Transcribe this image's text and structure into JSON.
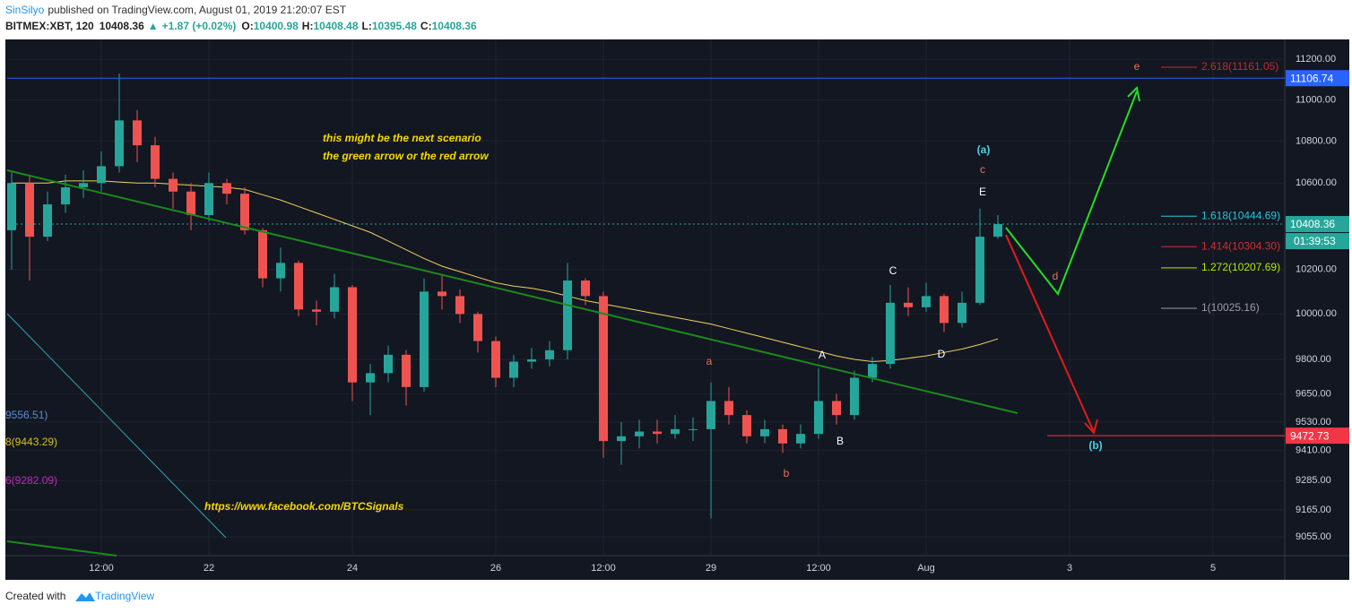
{
  "header": {
    "author": "SinSilyo",
    "published": "published on TradingView.com, August 01, 2019 21:20:07 EST",
    "symbol": "BITMEX:XBT, 120",
    "last": 10408.36,
    "change": "+1.87 (+0.02%)",
    "ohlc": [
      {
        "key": "O:",
        "value": 10400.98
      },
      {
        "key": "H:",
        "value": 10408.48
      },
      {
        "key": "L:",
        "value": 10395.48
      },
      {
        "key": "C:",
        "value": 10408.36
      }
    ]
  },
  "chart_data": {
    "type": "candlestick",
    "x": [
      -18,
      -12,
      -6,
      0,
      6,
      12,
      18,
      24,
      30,
      36,
      42,
      48,
      54,
      60,
      66,
      72,
      78,
      84,
      90,
      96,
      102,
      108,
      114,
      120,
      126,
      132,
      138,
      144,
      150,
      156,
      162,
      168,
      174,
      180,
      186,
      192,
      198,
      204,
      210,
      216,
      222,
      228,
      234,
      240,
      246,
      252,
      258,
      264,
      270,
      276,
      282,
      288,
      294,
      300,
      306,
      312
    ],
    "open": [
      10380,
      10600,
      10350,
      10500,
      10580,
      10600,
      10680,
      10900,
      10780,
      10620,
      10560,
      10450,
      10600,
      10550,
      10380,
      10160,
      10230,
      10020,
      10010,
      10120,
      9700,
      9740,
      9820,
      9680,
      10100,
      10080,
      10000,
      9880,
      9720,
      9790,
      9800,
      9840,
      10150,
      10080,
      9450,
      9470,
      9490,
      9480,
      9500,
      9500,
      9620,
      9560,
      9470,
      9500,
      9440,
      9480,
      9620,
      9560,
      9720,
      9780,
      10050,
      10030,
      10080,
      9960,
      10050,
      10350
    ],
    "high": [
      10650,
      10640,
      10560,
      10640,
      10660,
      10750,
      11130,
      10950,
      10820,
      10650,
      10600,
      10650,
      10620,
      10580,
      10390,
      10300,
      10240,
      10060,
      10180,
      10130,
      9780,
      9860,
      9840,
      10160,
      10180,
      10110,
      10010,
      9900,
      9820,
      9850,
      9880,
      10230,
      10160,
      10100,
      9530,
      9540,
      9540,
      9560,
      9550,
      9700,
      9680,
      9580,
      9540,
      9520,
      9520,
      9760,
      9650,
      9750,
      9810,
      10130,
      10120,
      10140,
      10090,
      10100,
      10480,
      10450
    ],
    "low": [
      10200,
      10150,
      10330,
      10460,
      10530,
      10560,
      10650,
      10700,
      10580,
      10480,
      10380,
      10420,
      10500,
      10360,
      10120,
      10100,
      9990,
      9950,
      9980,
      9620,
      9560,
      9700,
      9600,
      9660,
      10020,
      9960,
      9830,
      9680,
      9680,
      9760,
      9770,
      9800,
      10040,
      9380,
      9350,
      9420,
      9440,
      9460,
      9450,
      9130,
      9520,
      9440,
      9440,
      9400,
      9420,
      9460,
      9520,
      9540,
      9700,
      9760,
      9990,
      10010,
      9920,
      9940,
      10040,
      10340
    ],
    "close": [
      10600,
      10350,
      10500,
      10580,
      10600,
      10680,
      10900,
      10780,
      10620,
      10560,
      10450,
      10600,
      10550,
      10380,
      10160,
      10230,
      10020,
      10010,
      10120,
      9700,
      9740,
      9820,
      9680,
      10100,
      10080,
      10000,
      9880,
      9720,
      9790,
      9800,
      9840,
      10150,
      10080,
      9450,
      9470,
      9490,
      9480,
      9500,
      9500,
      9620,
      9560,
      9470,
      9500,
      9440,
      9480,
      9620,
      9560,
      9720,
      9780,
      10050,
      10030,
      10080,
      9960,
      10050,
      10350,
      10408.36
    ],
    "up_color": "#26a69a",
    "down_color": "#ef5350",
    "moving_average": {
      "color": "#f0d060",
      "values": [
        10600,
        10600,
        10600,
        10610,
        10610,
        10610,
        10605,
        10600,
        10600,
        10595,
        10590,
        10585,
        10580,
        10570,
        10545,
        10520,
        10490,
        10460,
        10430,
        10400,
        10370,
        10330,
        10290,
        10250,
        10215,
        10190,
        10165,
        10140,
        10125,
        10115,
        10100,
        10080,
        10060,
        10045,
        10030,
        10015,
        10000,
        9985,
        9970,
        9955,
        9935,
        9915,
        9895,
        9875,
        9855,
        9835,
        9815,
        9800,
        9790,
        9795,
        9805,
        9815,
        9830,
        9845,
        9865,
        9890
      ]
    },
    "xlim": [
      -19.5,
      408
    ],
    "xticks": [
      {
        "value": 12,
        "label": "12:00"
      },
      {
        "value": 48,
        "label": "22"
      },
      {
        "value": 96,
        "label": "24"
      },
      {
        "value": 144,
        "label": "26"
      },
      {
        "value": 180,
        "label": "12:00"
      },
      {
        "value": 216,
        "label": "29"
      },
      {
        "value": 252,
        "label": "12:00"
      },
      {
        "value": 288,
        "label": "Aug"
      },
      {
        "value": 336,
        "label": "3"
      },
      {
        "value": 384,
        "label": "5"
      }
    ],
    "ylim": [
      8980,
      11300
    ],
    "log_scale": true,
    "grid": true,
    "yticks": [
      {
        "value": 11200,
        "label": "11200.00"
      },
      {
        "value": 11000,
        "label": "11000.00"
      },
      {
        "value": 10800,
        "label": "10800.00"
      },
      {
        "value": 10600,
        "label": "10600.00"
      },
      {
        "value": 10200,
        "label": "10200.00"
      },
      {
        "value": 10000,
        "label": "10000.00"
      },
      {
        "value": 9800,
        "label": "9800.00"
      },
      {
        "value": 9650,
        "label": "9650.00"
      },
      {
        "value": 9530,
        "label": "9530.00"
      },
      {
        "value": 9410,
        "label": "9410.00"
      },
      {
        "value": 9285,
        "label": "9285.00"
      },
      {
        "value": 9165,
        "label": "9165.00"
      },
      {
        "value": 9055,
        "label": "9055.00"
      }
    ],
    "price_lines": [
      {
        "value": 11106.74,
        "color": "#2962ff"
      },
      {
        "value": 10408.36,
        "color": "#26a69a"
      },
      {
        "value": 9472.73,
        "color": "#f23645"
      }
    ],
    "countdown": "01:39:53",
    "fib_levels": [
      {
        "label": "2.618(11161.05)",
        "value": 11161.05,
        "color": "#c62828"
      },
      {
        "label": "1.618(10444.69)",
        "value": 10444.69,
        "color": "#26c6da"
      },
      {
        "label": "1.414(10304.30)",
        "value": 10304.3,
        "color": "#d32f2f"
      },
      {
        "label": "1.272(10207.69)",
        "value": 10207.69,
        "color": "#aeea00"
      },
      {
        "label": "1(10025.16)",
        "value": 10025.16,
        "color": "#9e9e9e"
      }
    ],
    "left_levels": [
      {
        "label": "9556.51)",
        "value": 9556.51,
        "color": "#5c8dd6"
      },
      {
        "label": "8(9443.29)",
        "value": 9443.29,
        "color": "#d4c21a"
      },
      {
        "label": "6(9282.09)",
        "value": 9282.09,
        "color": "#c02bb8"
      }
    ],
    "wave_labels": [
      {
        "text": "e",
        "color": "#e8735a"
      },
      {
        "text": "(a)",
        "color": "#4dd0e1"
      },
      {
        "text": "c",
        "color": "#e8735a"
      },
      {
        "text": "E",
        "color": "#ffffff"
      },
      {
        "text": "C",
        "color": "#ffffff"
      },
      {
        "text": "d",
        "color": "#e8735a"
      },
      {
        "text": "A",
        "color": "#ffffff"
      },
      {
        "text": "D",
        "color": "#ffffff"
      },
      {
        "text": "a",
        "color": "#e8735a"
      },
      {
        "text": "B",
        "color": "#ffffff"
      },
      {
        "text": "b",
        "color": "#e8735a"
      },
      {
        "text": "(b)",
        "color": "#4dd0e1"
      }
    ],
    "notes": [
      "this might be the next scenario",
      "the green arrow or the red arrow",
      "https://www.facebook.com/BTCSignals"
    ]
  },
  "footer": {
    "created": "Created with",
    "brand": "TradingView"
  }
}
